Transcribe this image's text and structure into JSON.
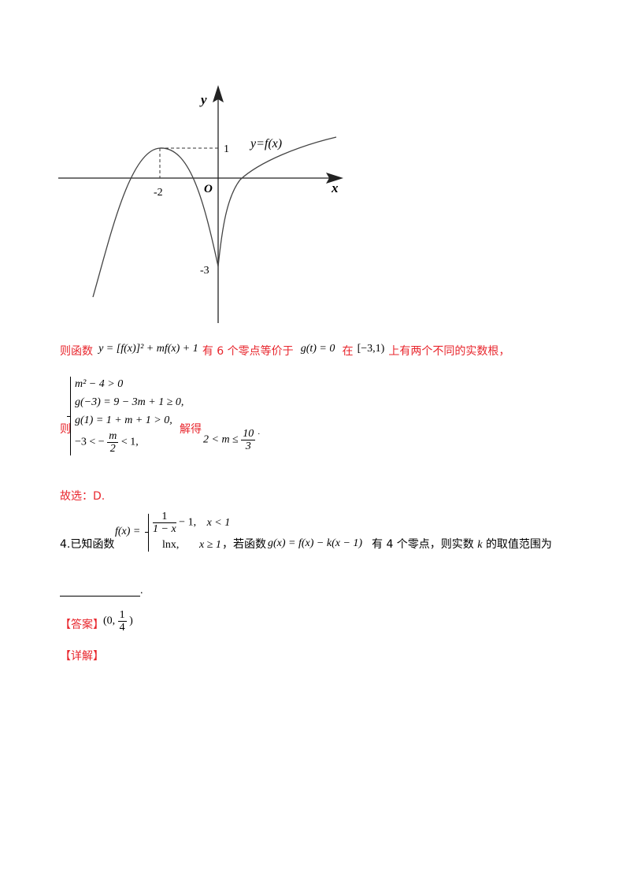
{
  "graph": {
    "y_axis": "y",
    "x_axis": "x",
    "origin": "O",
    "curve_label": "y=f(x)",
    "y_tick_1": "1",
    "y_tick_neg3": "-3",
    "x_tick_neg2": "-2"
  },
  "line1": {
    "text_a": "则函数",
    "formula_a": "y = [f(x)]² + mf(x) + 1",
    "text_b": "有 6 个零点等价于",
    "formula_b": "g(t) = 0",
    "text_c": "在",
    "formula_c": "[−3,1)",
    "text_d": "上有两个不同的实数根，"
  },
  "system": {
    "prefix": "则",
    "row1": "m² − 4 > 0",
    "row2": "g(−3) = 9 − 3m + 1 ≥ 0,",
    "row3": "g(1) = 1 + m + 1 > 0,",
    "row4_a": "−3 < −",
    "row4_num": "m",
    "row4_den": "2",
    "row4_b": "< 1,",
    "solve_label": "解得",
    "result_a": "2 < m ≤",
    "result_num": "10",
    "result_den": "3",
    "result_dot": "."
  },
  "conclusion": "故选：D.",
  "problem": {
    "number": "4.已知函数",
    "fx": "f(x) =",
    "case1_num": "1",
    "case1_den": "1 − x",
    "case1_tail": "− 1,",
    "case1_cond": "x < 1",
    "case2_expr": "lnx,",
    "case2_cond": "x ≥ 1",
    "text_if": "，若函数",
    "gx": "g(x) = f(x) − k(x − 1)",
    "text_have": "有 4 个零点，则实数",
    "k": "k",
    "text_range": "的取值范围为",
    "blank_end": "."
  },
  "answer": {
    "label": "【答案】",
    "value_a": "(0,",
    "value_num": "1",
    "value_den": "4",
    "value_b": ")"
  },
  "explain": {
    "label": "【详解】"
  }
}
